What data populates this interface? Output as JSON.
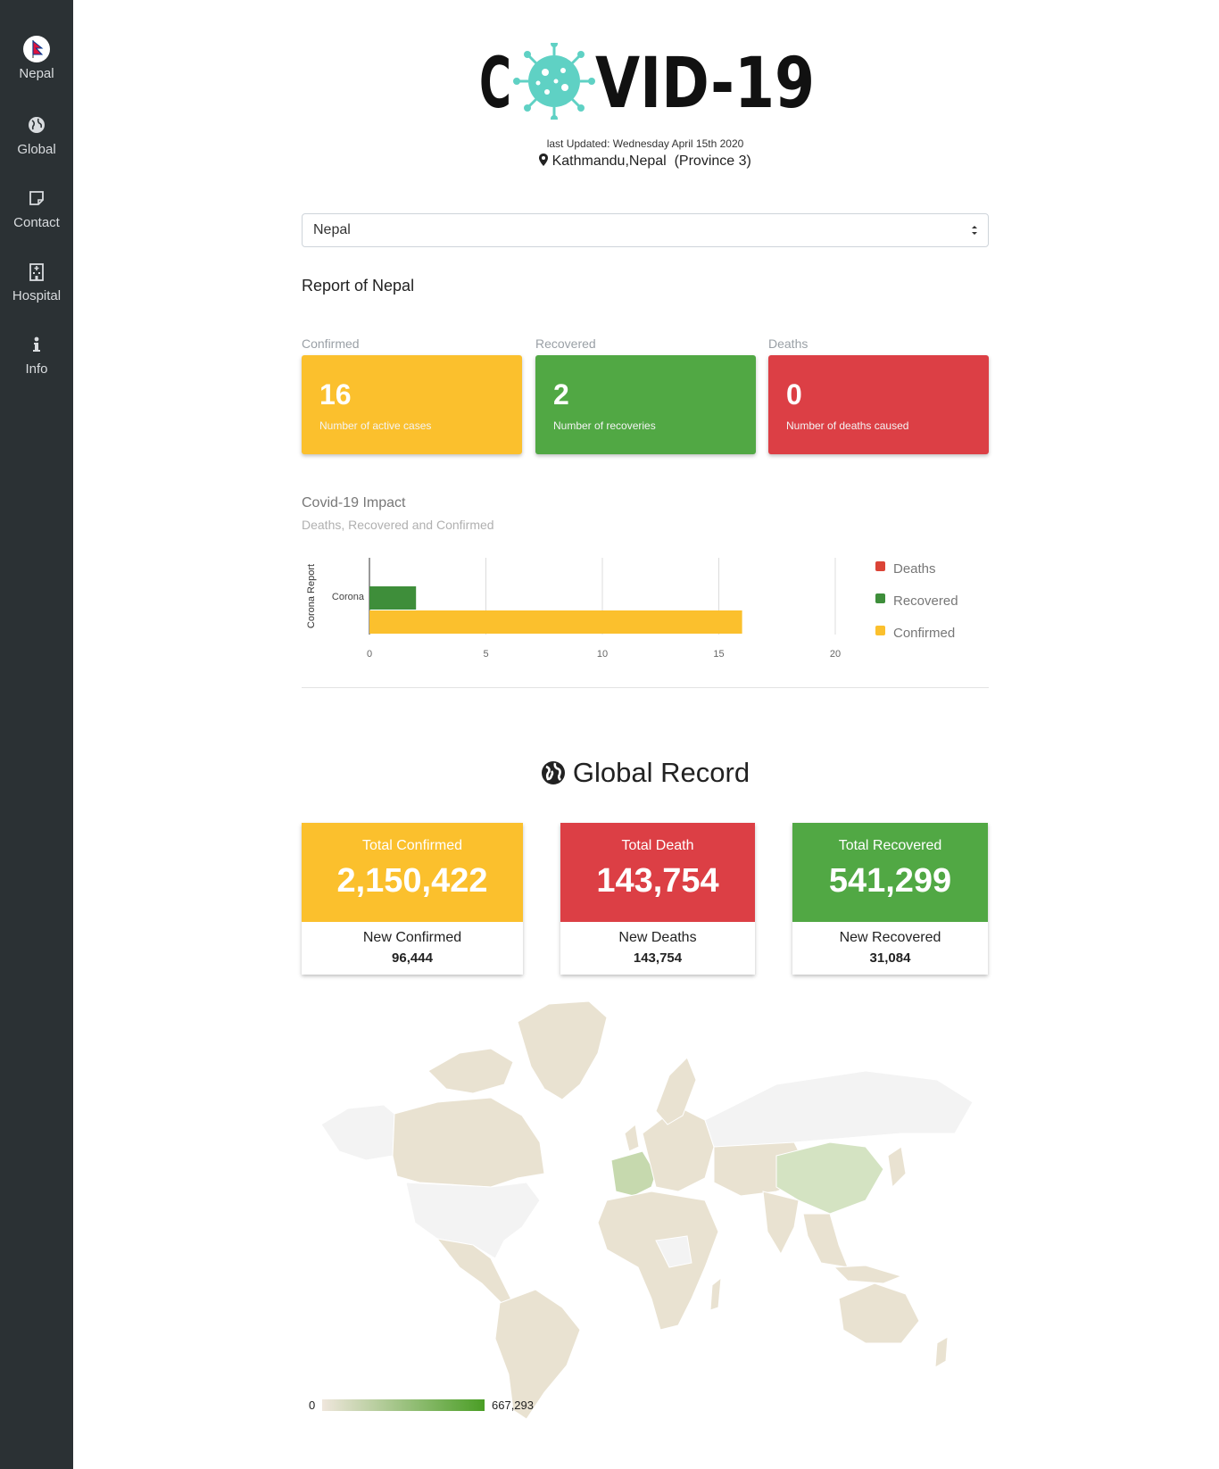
{
  "sidebar": {
    "items": [
      {
        "label": "Nepal",
        "icon": "nepal-flag-icon"
      },
      {
        "label": "Global",
        "icon": "globe-icon"
      },
      {
        "label": "Contact",
        "icon": "sticky-note-icon"
      },
      {
        "label": "Hospital",
        "icon": "hospital-icon"
      },
      {
        "label": "Info",
        "icon": "info-icon"
      }
    ]
  },
  "header": {
    "logo_text": "COVID-19",
    "last_updated": "last Updated: Wednesday April 15th 2020",
    "location": "Kathmandu,Nepal  (Province 3)"
  },
  "country_select": {
    "value": "Nepal"
  },
  "report": {
    "title": "Report of Nepal",
    "cards": [
      {
        "label": "Confirmed",
        "value": "16",
        "desc": "Number of active cases",
        "color": "#fbc02d"
      },
      {
        "label": "Recovered",
        "value": "2",
        "desc": "Number of recoveries",
        "color": "#51a844"
      },
      {
        "label": "Deaths",
        "value": "0",
        "desc": "Number of deaths caused",
        "color": "#dc3f45"
      }
    ]
  },
  "impact": {
    "title": "Covid-19 Impact",
    "subtitle": "Deaths, Recovered and Confirmed"
  },
  "chart_data": {
    "type": "bar",
    "orientation": "horizontal",
    "categories": [
      "Corona"
    ],
    "series": [
      {
        "name": "Deaths",
        "values": [
          0
        ],
        "color": "#db4437"
      },
      {
        "name": "Recovered",
        "values": [
          2
        ],
        "color": "#3e8e3a"
      },
      {
        "name": "Confirmed",
        "values": [
          16
        ],
        "color": "#fbc02d"
      }
    ],
    "ylabel": "Corona Report",
    "xlabel": "",
    "xlim": [
      0,
      20
    ],
    "xticks": [
      "0",
      "5",
      "10",
      "15",
      "20"
    ],
    "grid": true,
    "legend": "right"
  },
  "global": {
    "title": "Global Record",
    "cards": [
      {
        "label": "Total Confirmed",
        "value": "2,150,422",
        "new_label": "New Confirmed",
        "new_value": "96,444",
        "color": "#fbc02d"
      },
      {
        "label": "Total Death",
        "value": "143,754",
        "new_label": "New Deaths",
        "new_value": "143,754",
        "color": "#dc3f45"
      },
      {
        "label": "Total Recovered",
        "value": "541,299",
        "new_label": "New Recovered",
        "new_value": "31,084",
        "color": "#51a844"
      }
    ]
  },
  "map_legend": {
    "min": "0",
    "max": "667,293"
  }
}
